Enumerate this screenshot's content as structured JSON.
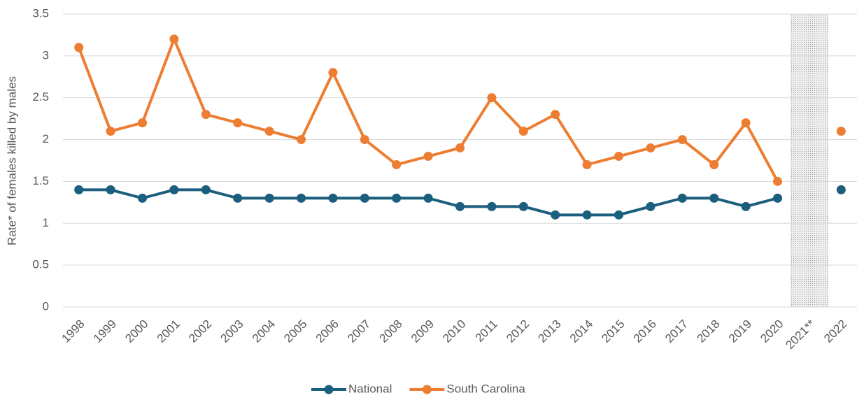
{
  "chart_data": {
    "type": "line",
    "y_label": "Rate* of females killed by males",
    "categories": [
      "1998",
      "1999",
      "2000",
      "2001",
      "2002",
      "2003",
      "2004",
      "2005",
      "2006",
      "2007",
      "2008",
      "2009",
      "2010",
      "2011",
      "2012",
      "2013",
      "2014",
      "2015",
      "2016",
      "2017",
      "2018",
      "2019",
      "2020",
      "2021**",
      "2022"
    ],
    "series": [
      {
        "name": "National",
        "color": "#1b5e7e",
        "values": [
          1.4,
          1.4,
          1.3,
          1.4,
          1.4,
          1.3,
          1.3,
          1.3,
          1.3,
          1.3,
          1.3,
          1.3,
          1.2,
          1.2,
          1.2,
          1.1,
          1.1,
          1.1,
          1.2,
          1.3,
          1.3,
          1.2,
          1.3,
          null,
          1.4
        ]
      },
      {
        "name": "South Carolina",
        "color": "#ed7d31",
        "values": [
          3.1,
          2.1,
          2.2,
          3.2,
          2.3,
          2.2,
          2.1,
          2.0,
          2.8,
          2.0,
          1.7,
          1.8,
          1.9,
          2.5,
          2.1,
          2.3,
          1.7,
          1.8,
          1.9,
          2.0,
          1.7,
          2.2,
          1.5,
          null,
          2.1
        ]
      }
    ],
    "shaded_category": "2021**",
    "ylim": [
      0,
      3.5
    ],
    "yticks": [
      0,
      0.5,
      1,
      1.5,
      2,
      2.5,
      3,
      3.5
    ],
    "grid": true,
    "legend": "bottom"
  }
}
